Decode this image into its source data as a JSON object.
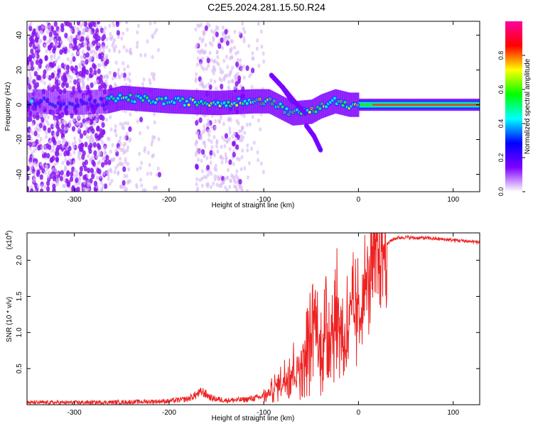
{
  "figure_title": "C2E5.2024.281.15.50.R24",
  "chart_data": [
    {
      "type": "heatmap",
      "title": "",
      "xlabel": "Height of straight line (km)",
      "ylabel": "Frequency (Hz)",
      "xlim": [
        -350,
        128
      ],
      "ylim": [
        -50,
        48
      ],
      "x_ticks": [
        -300,
        -200,
        -100,
        0,
        100
      ],
      "x_tick_labels": [
        "-300",
        "-200",
        "-100",
        "0",
        "100"
      ],
      "y_ticks": [
        -40,
        -20,
        0,
        20,
        40
      ],
      "y_tick_labels": [
        "-40",
        "-20",
        "0",
        "20",
        "40"
      ],
      "grid": false,
      "colorbar": {
        "label": "Normalized spectral amplitude",
        "range": [
          0,
          1
        ],
        "ticks": [
          0.0,
          0.2,
          0.4,
          0.6,
          0.8
        ],
        "tick_labels": [
          "0.0",
          "0.2",
          "0.4",
          "0.6",
          "0.8"
        ],
        "colors": [
          "#ffffff",
          "#7f00ff",
          "#0000ff",
          "#00ffff",
          "#00ff00",
          "#ffff00",
          "#ff0000",
          "#ff00a0"
        ]
      },
      "main_band": {
        "description_points": [
          {
            "x": -345,
            "y": 2
          },
          {
            "x": -300,
            "y": 1
          },
          {
            "x": -265,
            "y": 2
          },
          {
            "x": -250,
            "y": 4
          },
          {
            "x": -200,
            "y": 2
          },
          {
            "x": -150,
            "y": 1
          },
          {
            "x": -110,
            "y": 2
          },
          {
            "x": -95,
            "y": 2
          },
          {
            "x": -70,
            "y": -5
          },
          {
            "x": -50,
            "y": -4
          },
          {
            "x": -40,
            "y": -1
          },
          {
            "x": -25,
            "y": 2
          },
          {
            "x": -10,
            "y": 0
          },
          {
            "x": 0,
            "y": 0
          },
          {
            "x": 128,
            "y": 0
          }
        ]
      },
      "branches": [
        {
          "points": [
            {
              "x": -92,
              "y": 17
            },
            {
              "x": -80,
              "y": 10
            },
            {
              "x": -68,
              "y": 2
            },
            {
              "x": -56,
              "y": -5
            }
          ]
        },
        {
          "points": [
            {
              "x": -80,
              "y": 10
            },
            {
              "x": -70,
              "y": 2
            }
          ]
        },
        {
          "points": [
            {
              "x": -55,
              "y": -12
            },
            {
              "x": -47,
              "y": -18
            },
            {
              "x": -40,
              "y": -26
            }
          ]
        }
      ]
    },
    {
      "type": "line",
      "title": "",
      "xlabel": "Height of straight line (km)",
      "ylabel": "SNR (10 * v/v)",
      "y_multiplier_label": "(x10",
      "y_multiplier_exponent": "4",
      "y_multiplier_close": ")",
      "xlim": [
        -350,
        128
      ],
      "ylim": [
        0,
        23800
      ],
      "x_ticks": [
        -300,
        -200,
        -100,
        0,
        100
      ],
      "x_tick_labels": [
        "-300",
        "-200",
        "-100",
        "0",
        "100"
      ],
      "y_ticks": [
        5000,
        10000,
        15000,
        20000
      ],
      "y_tick_labels": [
        "0.5",
        "1.0",
        "1.5",
        "2.0"
      ],
      "grid": false,
      "series": [
        {
          "color": "#ee2222",
          "x": [
            -350,
            -300,
            -250,
            -200,
            -180,
            -165,
            -155,
            -140,
            -120,
            -105,
            -95,
            -88,
            -80,
            -72,
            -65,
            -58,
            -50,
            -46,
            -42,
            -38,
            -33,
            -28,
            -22,
            -16,
            -10,
            -5,
            0,
            5,
            10,
            15,
            20,
            25,
            30,
            35,
            40,
            50,
            60,
            70,
            80,
            90,
            100,
            110,
            120,
            128
          ],
          "y": [
            300,
            300,
            350,
            500,
            800,
            1800,
            900,
            600,
            700,
            1000,
            1500,
            2500,
            3200,
            4800,
            5000,
            6500,
            9000,
            13000,
            7000,
            8500,
            10000,
            11000,
            13000,
            8500,
            11500,
            12500,
            12000,
            15000,
            17000,
            19000,
            20500,
            21500,
            22200,
            22800,
            23100,
            23200,
            23100,
            23100,
            23000,
            22900,
            22800,
            22700,
            22600,
            22500
          ]
        }
      ]
    }
  ]
}
